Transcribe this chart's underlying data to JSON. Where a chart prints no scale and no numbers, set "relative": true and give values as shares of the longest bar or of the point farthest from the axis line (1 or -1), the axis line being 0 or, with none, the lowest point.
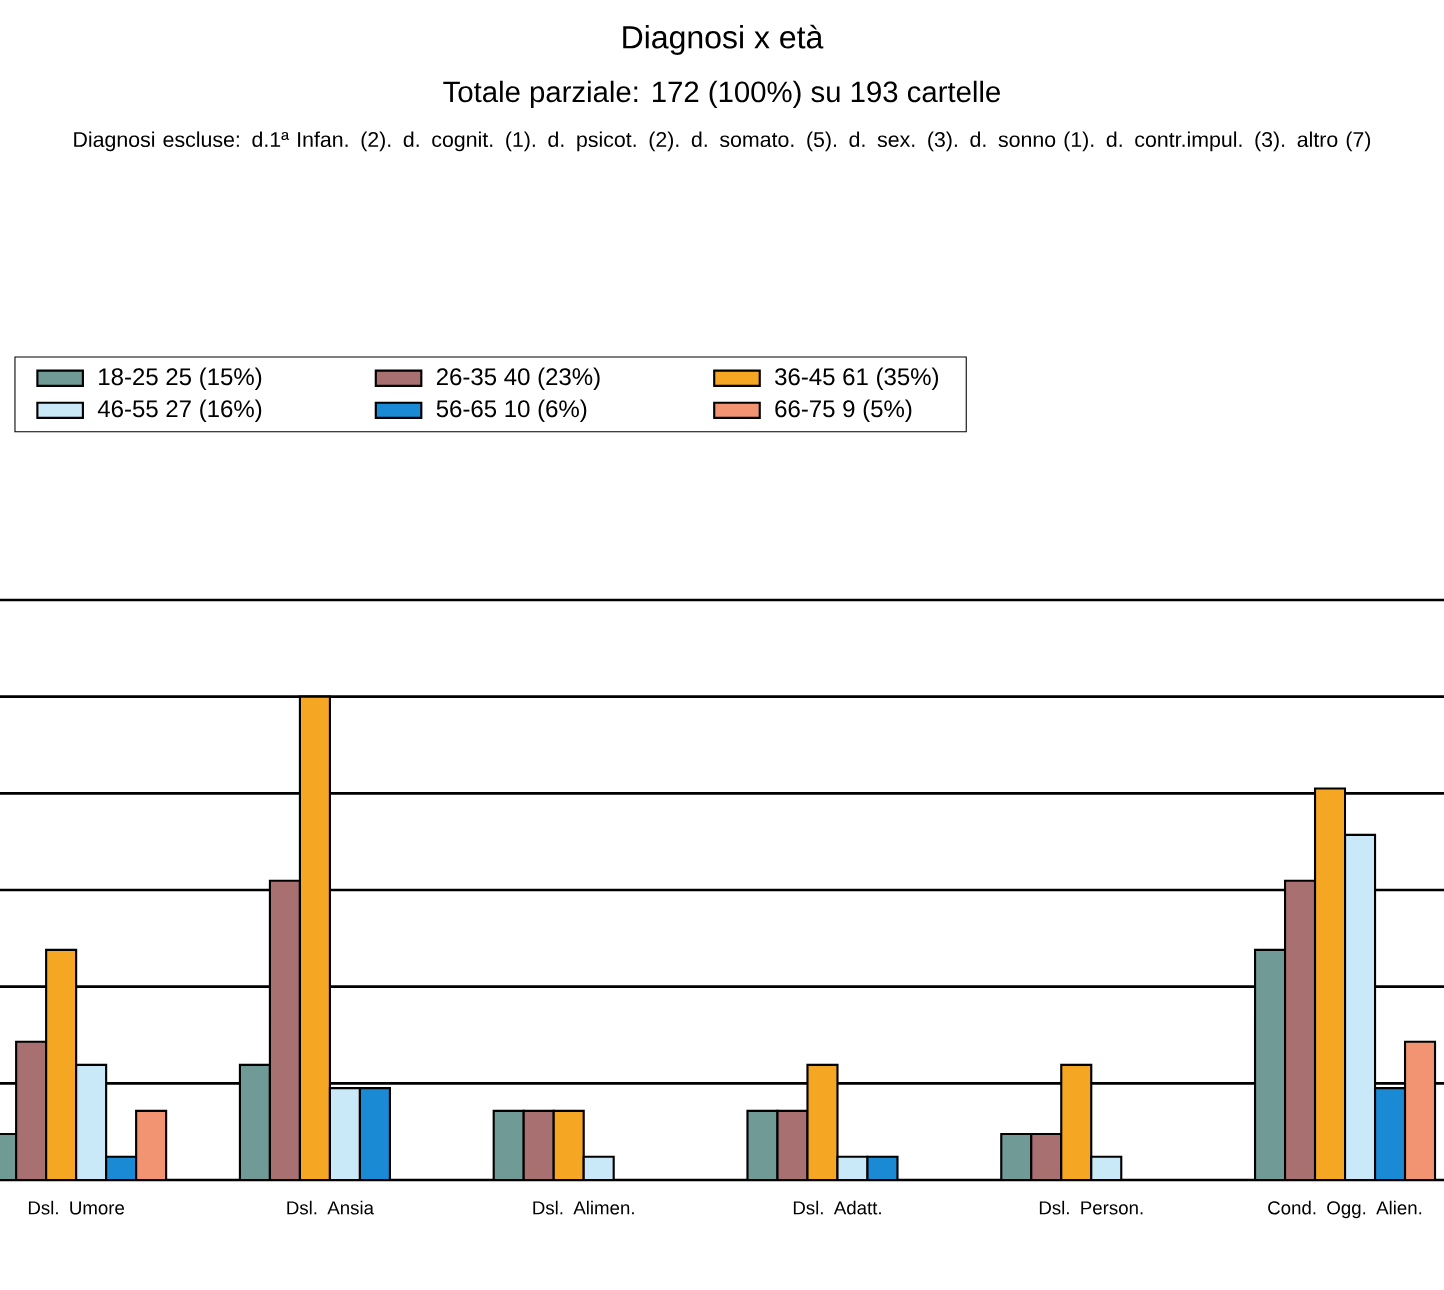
{
  "chart_data": {
    "type": "bar",
    "title": "Diagnosi x età",
    "subtitle": "Totale parziale: 172 (100%) su 193 cartelle",
    "annotations": [
      "Diagnosi escluse: d.1ª Infan. (2). d. cognit. (1). d. psicot. (2). d. somato. (5). d. sex. (3). d. sonno (1). d. contr.impul. (3). altro (7)"
    ],
    "categories": [
      "Dsl. Umore",
      "Dsl. Ansia",
      "Dsl. Alimen.",
      "Dsl. Adatt.",
      "Dsl. Person.",
      "Cond. Ogg. Alien."
    ],
    "relative": true,
    "grid": "y",
    "legend": "top",
    "series": [
      {
        "name": "18-25 25 (15%)",
        "color": "#6f9a96",
        "values": [
          0.095,
          0.238,
          0.143,
          0.143,
          0.095,
          0.476
        ]
      },
      {
        "name": "26-35 40 (23%)",
        "color": "#a87070",
        "values": [
          0.286,
          0.619,
          0.143,
          0.143,
          0.095,
          0.619
        ]
      },
      {
        "name": "36-45 61 (35%)",
        "color": "#f5a623",
        "values": [
          0.476,
          1,
          0.143,
          0.238,
          0.238,
          0.81
        ]
      },
      {
        "name": "46-55 27 (16%)",
        "color": "#c9e8f8",
        "values": [
          0.238,
          0.19,
          0.048,
          0.048,
          0.048,
          0.714
        ]
      },
      {
        "name": "56-65 10 (6%)",
        "color": "#1a8ad4",
        "values": [
          0.048,
          0.19,
          0,
          0.048,
          0,
          0.19
        ]
      },
      {
        "name": "66-75 9 (5%)",
        "color": "#f29472",
        "values": [
          0.143,
          0,
          0,
          0,
          0,
          0.286
        ]
      }
    ]
  }
}
